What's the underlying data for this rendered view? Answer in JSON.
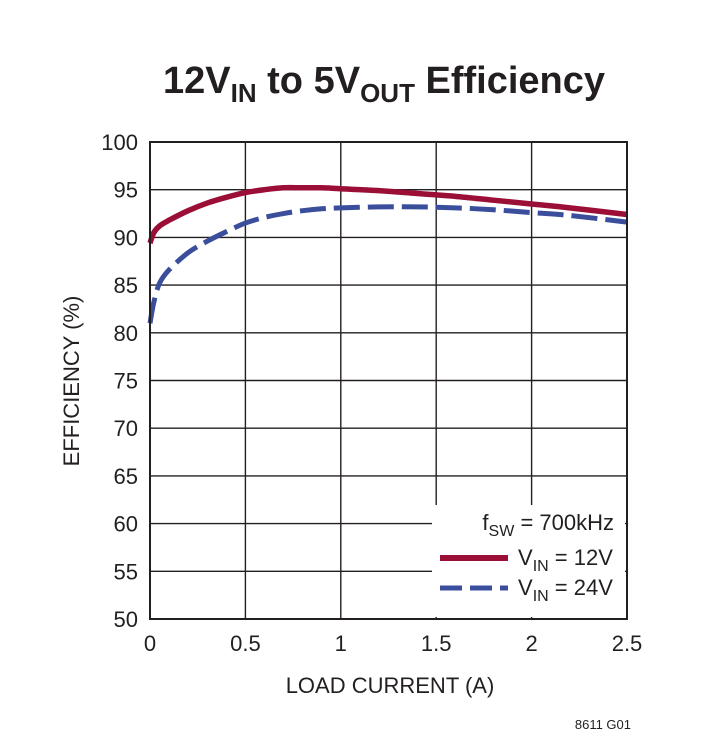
{
  "title": {
    "main_a": "12V",
    "sub_a": "IN",
    "main_b": " to 5V",
    "sub_b": "OUT",
    "main_c": " Efficiency"
  },
  "figure_id": "8611 G01",
  "annotation": {
    "prefix": "f",
    "sub": "SW",
    "rest": " = 700kHz"
  },
  "colors": {
    "vin12": "#9b0f37",
    "vin24": "#3a4e9c",
    "ink": "#231f20"
  },
  "chart_data": {
    "type": "line",
    "title": "12VIN to 5VOUT Efficiency",
    "xlabel": "LOAD CURRENT (A)",
    "ylabel": "EFFICIENCY (%)",
    "xlim": [
      0,
      2.5
    ],
    "ylim": [
      50,
      100
    ],
    "xticks": [
      "0",
      "0.5",
      "1",
      "1.5",
      "2",
      "2.5"
    ],
    "yticks": [
      "50",
      "55",
      "60",
      "65",
      "70",
      "75",
      "80",
      "85",
      "90",
      "95",
      "100"
    ],
    "grid": true,
    "legend_position": "bottom-right",
    "series": [
      {
        "name": "VIN = 12V",
        "label_prefix": "V",
        "label_sub": "IN",
        "label_rest": " = 12V",
        "color": "#9b0f37",
        "dash": "solid",
        "x": [
          0,
          0.02,
          0.05,
          0.1,
          0.2,
          0.3,
          0.4,
          0.5,
          0.6,
          0.7,
          0.8,
          0.9,
          1.0,
          1.2,
          1.4,
          1.6,
          1.8,
          2.0,
          2.2,
          2.5
        ],
        "y": [
          89.4,
          90.5,
          91.2,
          91.8,
          92.8,
          93.6,
          94.2,
          94.7,
          95.0,
          95.2,
          95.2,
          95.2,
          95.1,
          94.9,
          94.6,
          94.3,
          93.9,
          93.5,
          93.1,
          92.4
        ]
      },
      {
        "name": "VIN = 24V",
        "label_prefix": "V",
        "label_sub": "IN",
        "label_rest": " = 24V",
        "color": "#3a4e9c",
        "dash": "dashed",
        "x": [
          0,
          0.02,
          0.05,
          0.1,
          0.2,
          0.3,
          0.4,
          0.5,
          0.6,
          0.7,
          0.8,
          0.9,
          1.0,
          1.2,
          1.4,
          1.6,
          1.8,
          2.0,
          2.2,
          2.5
        ],
        "y": [
          81.0,
          83.2,
          85.2,
          86.6,
          88.4,
          89.6,
          90.6,
          91.5,
          92.1,
          92.5,
          92.8,
          93.0,
          93.1,
          93.2,
          93.2,
          93.1,
          92.9,
          92.6,
          92.3,
          91.6
        ]
      }
    ]
  }
}
